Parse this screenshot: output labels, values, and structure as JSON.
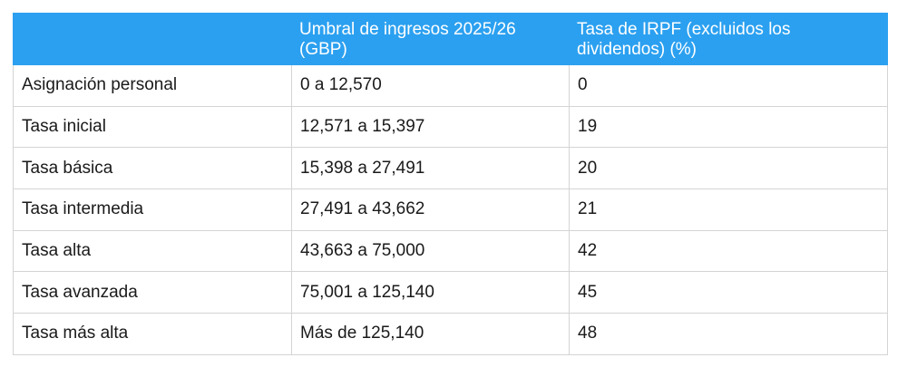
{
  "table": {
    "headers": [
      "",
      "Umbral de ingresos 2025/26 (GBP)",
      "Tasa de IRPF (excluidos los dividendos) (%)"
    ],
    "rows": [
      [
        "Asignación personal",
        "0 a 12,570",
        "0"
      ],
      [
        "Tasa inicial",
        "12,571 a 15,397",
        "19"
      ],
      [
        "Tasa básica",
        "15,398 a 27,491",
        "20"
      ],
      [
        "Tasa intermedia",
        "27,491 a 43,662",
        "21"
      ],
      [
        "Tasa alta",
        "43,663 a 75,000",
        "42"
      ],
      [
        "Tasa avanzada",
        "75,001 a 125,140",
        "45"
      ],
      [
        "Tasa más alta",
        "Más de 125,140",
        "48"
      ]
    ],
    "header_color": "#2ba0f0"
  }
}
